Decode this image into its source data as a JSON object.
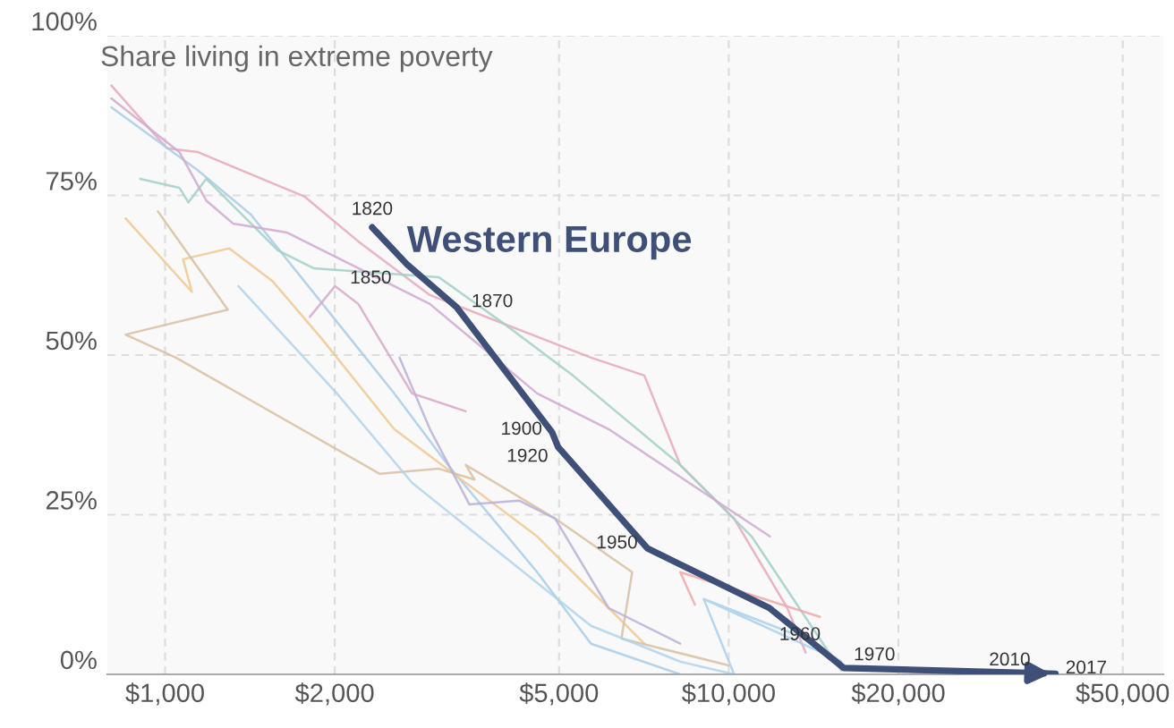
{
  "chart_data": {
    "type": "line",
    "ylabel": "Share living in extreme poverty",
    "log": "x",
    "xlim": [
      790,
      59000
    ],
    "xticks": [
      {
        "value": 1000,
        "label": "$1,000"
      },
      {
        "value": 2000,
        "label": "$2,000"
      },
      {
        "value": 5000,
        "label": "$5,000"
      },
      {
        "value": 10000,
        "label": "$10,000"
      },
      {
        "value": 20000,
        "label": "$20,000"
      },
      {
        "value": 50000,
        "label": "$50,000"
      }
    ],
    "ylim": [
      0,
      100
    ],
    "yticks": [
      {
        "value": 0,
        "label": "0%"
      },
      {
        "value": 25,
        "label": "25%"
      },
      {
        "value": 50,
        "label": "50%"
      },
      {
        "value": 75,
        "label": "75%"
      },
      {
        "value": 100,
        "label": "100%"
      }
    ],
    "grid": true,
    "legend": false,
    "series": [
      {
        "color": "#e8a8b8",
        "x": [
          803,
          1007,
          1141,
          1769,
          2202,
          2950,
          5697,
          7085,
          8200,
          10220,
          12700,
          13690
        ],
        "values": [
          92.2,
          82.4,
          81.8,
          74.8,
          67.8,
          59.4,
          49.6,
          46.8,
          32.8,
          24.4,
          10.4,
          3.4
        ]
      },
      {
        "color": "#a8cce8",
        "x": [
          803,
          1141,
          1420,
          1903,
          2549,
          3175,
          4572,
          5697,
          8200
        ],
        "values": [
          88.8,
          79.0,
          72.0,
          58.0,
          44.0,
          32.8,
          16.0,
          4.8,
          0
        ]
      },
      {
        "color": "#a0d0c8",
        "x": [
          903,
          1060,
          1100,
          1183,
          1585,
          1834,
          3060,
          3950,
          5290,
          8200,
          10980,
          14700,
          15830
        ],
        "values": [
          77.6,
          76.2,
          73.9,
          77.6,
          66.4,
          63.6,
          62.2,
          55.2,
          46.8,
          32.8,
          21.6,
          4.8,
          0.6
        ]
      },
      {
        "color": "#d0a8d0",
        "x": [
          803,
          1060,
          1183,
          1320,
          1644,
          2202,
          2950,
          4572,
          6120,
          9487,
          11830
        ],
        "values": [
          90.2,
          81.8,
          74.2,
          70.6,
          69.2,
          63.6,
          58.0,
          44.0,
          38.4,
          27.2,
          21.6
        ]
      },
      {
        "color": "#f0c890",
        "x": [
          851,
          1116,
          1076,
          1300,
          1550,
          1903,
          2549,
          3414,
          4572,
          6120,
          7085
        ],
        "values": [
          71.4,
          59.9,
          65.0,
          66.7,
          61.6,
          52.4,
          38.4,
          30.0,
          21.6,
          10.4,
          4.8
        ]
      },
      {
        "color": "#d8c0a0",
        "x": [
          971,
          1292,
          851,
          1045,
          2404,
          3060,
          3540,
          3414,
          4920,
          6740,
          6450,
          10000
        ],
        "values": [
          72.5,
          57.1,
          53.2,
          49.6,
          31.4,
          32.2,
          30.5,
          32.8,
          24.4,
          16.0,
          5.6,
          1.4
        ]
      },
      {
        "color": "#b0d4ec",
        "x": [
          1349,
          2017,
          2742,
          3950,
          5697,
          8200,
          10220
        ],
        "values": [
          60.8,
          44.0,
          30.0,
          18.8,
          7.6,
          2.0,
          0
        ]
      },
      {
        "color": "#b8b0d8",
        "x": [
          2605,
          2950,
          3467,
          4253,
          4920,
          6120,
          8200
        ],
        "values": [
          49.6,
          38.4,
          26.6,
          27.2,
          24.4,
          10.4,
          4.8
        ]
      },
      {
        "color": "#d8a8c8",
        "x": [
          1807,
          2003,
          2202,
          2742,
          3414
        ],
        "values": [
          56.0,
          60.8,
          58.0,
          44.0,
          41.2
        ]
      },
      {
        "color": "#a8d0ec",
        "x": [
          9030,
          13690,
          15830,
          9030,
          10220
        ],
        "values": [
          11.8,
          5.6,
          2.0,
          11.8,
          0
        ]
      },
      {
        "color": "#f0a8a8",
        "x": [
          8200,
          8710,
          8200,
          14520
        ],
        "values": [
          16.0,
          10.9,
          16.0,
          9.0
        ]
      },
      {
        "name": "Western Europe",
        "color": "#3f5078",
        "x": [
          2330,
          2680,
          3290,
          4860,
          4980,
          7180,
          11800,
          16000,
          35000,
          38000
        ],
        "values": [
          70,
          64.3,
          57.5,
          37.9,
          35.6,
          19.7,
          10.4,
          1.0,
          0.2,
          0.1
        ]
      }
    ],
    "annotations": [
      {
        "text": "1820",
        "x": 2330,
        "y": 70
      },
      {
        "text": "1850",
        "x": 2680,
        "y": 64.3
      },
      {
        "text": "1870",
        "x": 3290,
        "y": 57.5
      },
      {
        "text": "1900",
        "x": 4860,
        "y": 37.9
      },
      {
        "text": "1920",
        "x": 4980,
        "y": 35.6
      },
      {
        "text": "1950",
        "x": 7180,
        "y": 19.7
      },
      {
        "text": "1960",
        "x": 11800,
        "y": 10.4
      },
      {
        "text": "1970",
        "x": 16000,
        "y": 1.0
      },
      {
        "text": "2010",
        "x": 35000,
        "y": 0.2
      },
      {
        "text": "2017",
        "x": 38000,
        "y": 0.1
      }
    ]
  }
}
